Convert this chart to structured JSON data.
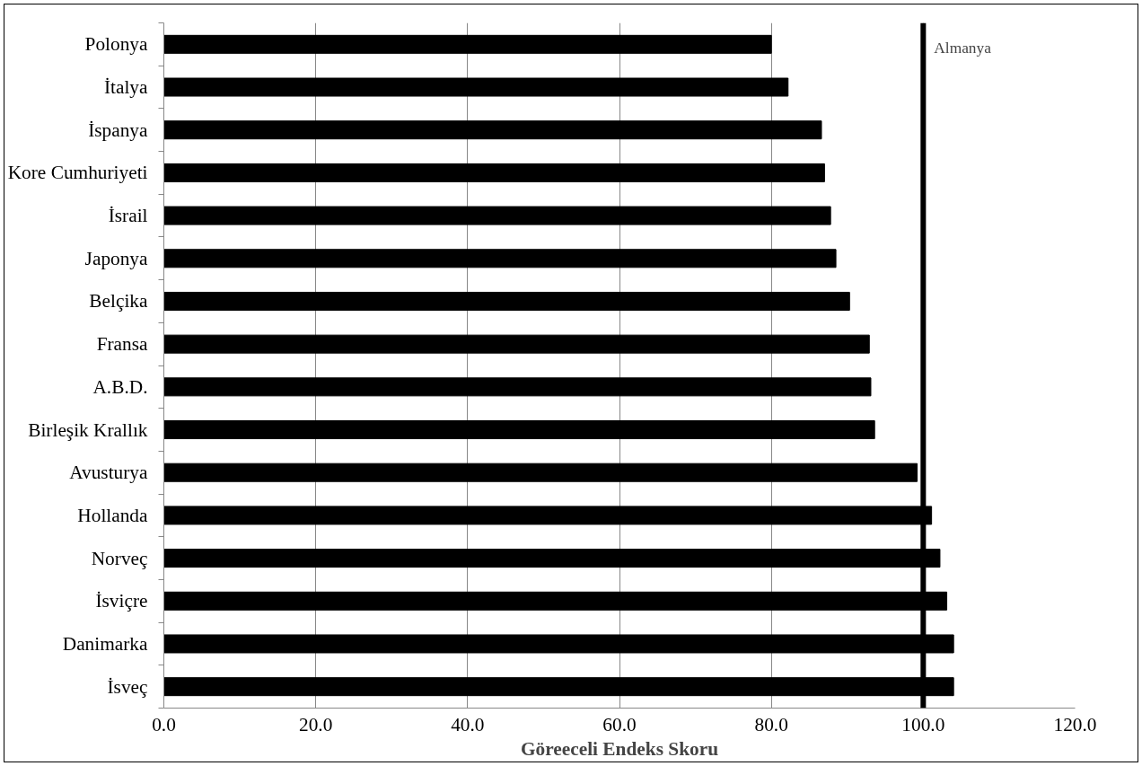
{
  "chart_data": {
    "type": "bar",
    "orientation": "horizontal",
    "xlabel": "Göreeceli Endeks Skoru",
    "categories": [
      "Polonya",
      "İtalya",
      "İspanya",
      "Kore Cumhuriyeti",
      "İsrail",
      "Japonya",
      "Belçika",
      "Fransa",
      "A.B.D.",
      "Birleşik Krallık",
      "Avusturya",
      "Hollanda",
      "Norveç",
      "İsviçre",
      "Danimarka",
      "İsveç"
    ],
    "values": [
      80.0,
      82.2,
      86.6,
      87.0,
      87.8,
      88.5,
      90.3,
      92.9,
      93.1,
      93.6,
      99.2,
      101.1,
      102.2,
      103.1,
      104.0,
      104.0
    ],
    "color": "#000000",
    "xlim": [
      0,
      120
    ],
    "xticks": [
      {
        "value": 0,
        "label": "0.0"
      },
      {
        "value": 20,
        "label": "20.0"
      },
      {
        "value": 40,
        "label": "40.0"
      },
      {
        "value": 60,
        "label": "60.0"
      },
      {
        "value": 80,
        "label": "80.0"
      },
      {
        "value": 100,
        "label": "100.0"
      },
      {
        "value": 120,
        "label": "120.0"
      }
    ],
    "grid": "x",
    "ref_lines": [
      {
        "axis": "x",
        "value": 100,
        "label": "Almanya",
        "color": "#000000"
      }
    ]
  }
}
